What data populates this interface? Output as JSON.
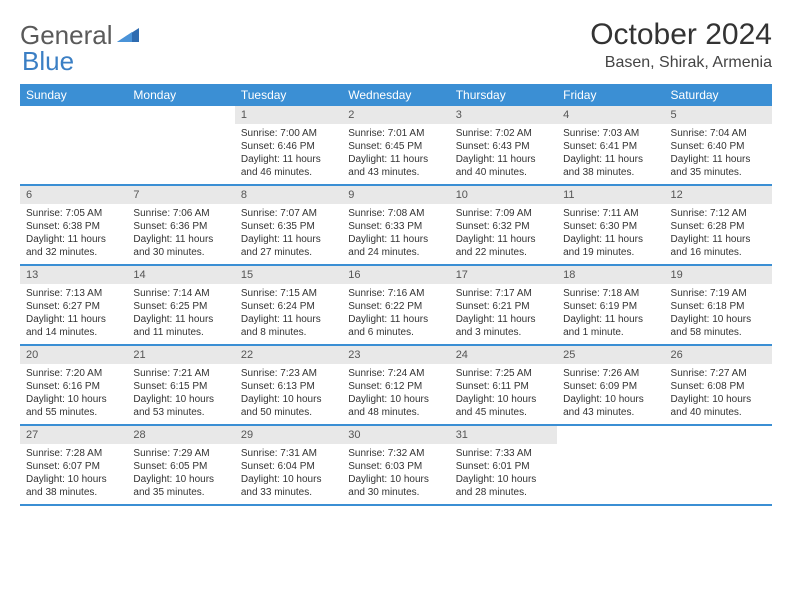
{
  "logo": {
    "text1": "General",
    "text2": "Blue"
  },
  "title": "October 2024",
  "location": "Basen, Shirak, Armenia",
  "colors": {
    "header_bg": "#3b8fd4",
    "header_text": "#ffffff",
    "daynum_bg": "#e8e8e8",
    "row_border": "#3b8fd4",
    "logo_gray": "#5a5a5a",
    "logo_blue": "#3b7fc4"
  },
  "day_headers": [
    "Sunday",
    "Monday",
    "Tuesday",
    "Wednesday",
    "Thursday",
    "Friday",
    "Saturday"
  ],
  "weeks": [
    [
      {
        "empty": true
      },
      {
        "empty": true
      },
      {
        "day": "1",
        "sunrise": "Sunrise: 7:00 AM",
        "sunset": "Sunset: 6:46 PM",
        "daylight1": "Daylight: 11 hours",
        "daylight2": "and 46 minutes."
      },
      {
        "day": "2",
        "sunrise": "Sunrise: 7:01 AM",
        "sunset": "Sunset: 6:45 PM",
        "daylight1": "Daylight: 11 hours",
        "daylight2": "and 43 minutes."
      },
      {
        "day": "3",
        "sunrise": "Sunrise: 7:02 AM",
        "sunset": "Sunset: 6:43 PM",
        "daylight1": "Daylight: 11 hours",
        "daylight2": "and 40 minutes."
      },
      {
        "day": "4",
        "sunrise": "Sunrise: 7:03 AM",
        "sunset": "Sunset: 6:41 PM",
        "daylight1": "Daylight: 11 hours",
        "daylight2": "and 38 minutes."
      },
      {
        "day": "5",
        "sunrise": "Sunrise: 7:04 AM",
        "sunset": "Sunset: 6:40 PM",
        "daylight1": "Daylight: 11 hours",
        "daylight2": "and 35 minutes."
      }
    ],
    [
      {
        "day": "6",
        "sunrise": "Sunrise: 7:05 AM",
        "sunset": "Sunset: 6:38 PM",
        "daylight1": "Daylight: 11 hours",
        "daylight2": "and 32 minutes."
      },
      {
        "day": "7",
        "sunrise": "Sunrise: 7:06 AM",
        "sunset": "Sunset: 6:36 PM",
        "daylight1": "Daylight: 11 hours",
        "daylight2": "and 30 minutes."
      },
      {
        "day": "8",
        "sunrise": "Sunrise: 7:07 AM",
        "sunset": "Sunset: 6:35 PM",
        "daylight1": "Daylight: 11 hours",
        "daylight2": "and 27 minutes."
      },
      {
        "day": "9",
        "sunrise": "Sunrise: 7:08 AM",
        "sunset": "Sunset: 6:33 PM",
        "daylight1": "Daylight: 11 hours",
        "daylight2": "and 24 minutes."
      },
      {
        "day": "10",
        "sunrise": "Sunrise: 7:09 AM",
        "sunset": "Sunset: 6:32 PM",
        "daylight1": "Daylight: 11 hours",
        "daylight2": "and 22 minutes."
      },
      {
        "day": "11",
        "sunrise": "Sunrise: 7:11 AM",
        "sunset": "Sunset: 6:30 PM",
        "daylight1": "Daylight: 11 hours",
        "daylight2": "and 19 minutes."
      },
      {
        "day": "12",
        "sunrise": "Sunrise: 7:12 AM",
        "sunset": "Sunset: 6:28 PM",
        "daylight1": "Daylight: 11 hours",
        "daylight2": "and 16 minutes."
      }
    ],
    [
      {
        "day": "13",
        "sunrise": "Sunrise: 7:13 AM",
        "sunset": "Sunset: 6:27 PM",
        "daylight1": "Daylight: 11 hours",
        "daylight2": "and 14 minutes."
      },
      {
        "day": "14",
        "sunrise": "Sunrise: 7:14 AM",
        "sunset": "Sunset: 6:25 PM",
        "daylight1": "Daylight: 11 hours",
        "daylight2": "and 11 minutes."
      },
      {
        "day": "15",
        "sunrise": "Sunrise: 7:15 AM",
        "sunset": "Sunset: 6:24 PM",
        "daylight1": "Daylight: 11 hours",
        "daylight2": "and 8 minutes."
      },
      {
        "day": "16",
        "sunrise": "Sunrise: 7:16 AM",
        "sunset": "Sunset: 6:22 PM",
        "daylight1": "Daylight: 11 hours",
        "daylight2": "and 6 minutes."
      },
      {
        "day": "17",
        "sunrise": "Sunrise: 7:17 AM",
        "sunset": "Sunset: 6:21 PM",
        "daylight1": "Daylight: 11 hours",
        "daylight2": "and 3 minutes."
      },
      {
        "day": "18",
        "sunrise": "Sunrise: 7:18 AM",
        "sunset": "Sunset: 6:19 PM",
        "daylight1": "Daylight: 11 hours",
        "daylight2": "and 1 minute."
      },
      {
        "day": "19",
        "sunrise": "Sunrise: 7:19 AM",
        "sunset": "Sunset: 6:18 PM",
        "daylight1": "Daylight: 10 hours",
        "daylight2": "and 58 minutes."
      }
    ],
    [
      {
        "day": "20",
        "sunrise": "Sunrise: 7:20 AM",
        "sunset": "Sunset: 6:16 PM",
        "daylight1": "Daylight: 10 hours",
        "daylight2": "and 55 minutes."
      },
      {
        "day": "21",
        "sunrise": "Sunrise: 7:21 AM",
        "sunset": "Sunset: 6:15 PM",
        "daylight1": "Daylight: 10 hours",
        "daylight2": "and 53 minutes."
      },
      {
        "day": "22",
        "sunrise": "Sunrise: 7:23 AM",
        "sunset": "Sunset: 6:13 PM",
        "daylight1": "Daylight: 10 hours",
        "daylight2": "and 50 minutes."
      },
      {
        "day": "23",
        "sunrise": "Sunrise: 7:24 AM",
        "sunset": "Sunset: 6:12 PM",
        "daylight1": "Daylight: 10 hours",
        "daylight2": "and 48 minutes."
      },
      {
        "day": "24",
        "sunrise": "Sunrise: 7:25 AM",
        "sunset": "Sunset: 6:11 PM",
        "daylight1": "Daylight: 10 hours",
        "daylight2": "and 45 minutes."
      },
      {
        "day": "25",
        "sunrise": "Sunrise: 7:26 AM",
        "sunset": "Sunset: 6:09 PM",
        "daylight1": "Daylight: 10 hours",
        "daylight2": "and 43 minutes."
      },
      {
        "day": "26",
        "sunrise": "Sunrise: 7:27 AM",
        "sunset": "Sunset: 6:08 PM",
        "daylight1": "Daylight: 10 hours",
        "daylight2": "and 40 minutes."
      }
    ],
    [
      {
        "day": "27",
        "sunrise": "Sunrise: 7:28 AM",
        "sunset": "Sunset: 6:07 PM",
        "daylight1": "Daylight: 10 hours",
        "daylight2": "and 38 minutes."
      },
      {
        "day": "28",
        "sunrise": "Sunrise: 7:29 AM",
        "sunset": "Sunset: 6:05 PM",
        "daylight1": "Daylight: 10 hours",
        "daylight2": "and 35 minutes."
      },
      {
        "day": "29",
        "sunrise": "Sunrise: 7:31 AM",
        "sunset": "Sunset: 6:04 PM",
        "daylight1": "Daylight: 10 hours",
        "daylight2": "and 33 minutes."
      },
      {
        "day": "30",
        "sunrise": "Sunrise: 7:32 AM",
        "sunset": "Sunset: 6:03 PM",
        "daylight1": "Daylight: 10 hours",
        "daylight2": "and 30 minutes."
      },
      {
        "day": "31",
        "sunrise": "Sunrise: 7:33 AM",
        "sunset": "Sunset: 6:01 PM",
        "daylight1": "Daylight: 10 hours",
        "daylight2": "and 28 minutes."
      },
      {
        "empty": true
      },
      {
        "empty": true
      }
    ]
  ]
}
